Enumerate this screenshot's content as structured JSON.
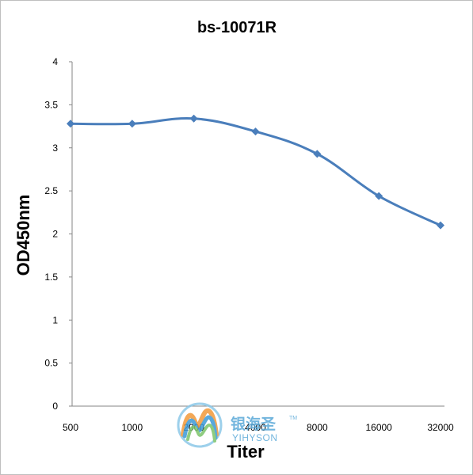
{
  "chart_data": {
    "type": "line",
    "title": "bs-10071R",
    "xlabel": "Titer",
    "ylabel": "OD450nm",
    "categories": [
      "500",
      "1000",
      "2000",
      "4000",
      "8000",
      "16000",
      "32000"
    ],
    "series": [
      {
        "values": [
          3.28,
          3.28,
          3.34,
          3.19,
          2.93,
          2.44,
          2.1
        ]
      }
    ],
    "ylim": [
      0,
      4
    ],
    "yticks": [
      "0",
      "0.5",
      "1",
      "1.5",
      "2",
      "2.5",
      "3",
      "3.5",
      "4"
    ],
    "grid": false,
    "legend": "none",
    "line_color": "#4a7ebb",
    "marker": "diamond"
  },
  "watermark": {
    "chinese": "银海圣",
    "english": "YIHYSON",
    "tm": "TM"
  }
}
